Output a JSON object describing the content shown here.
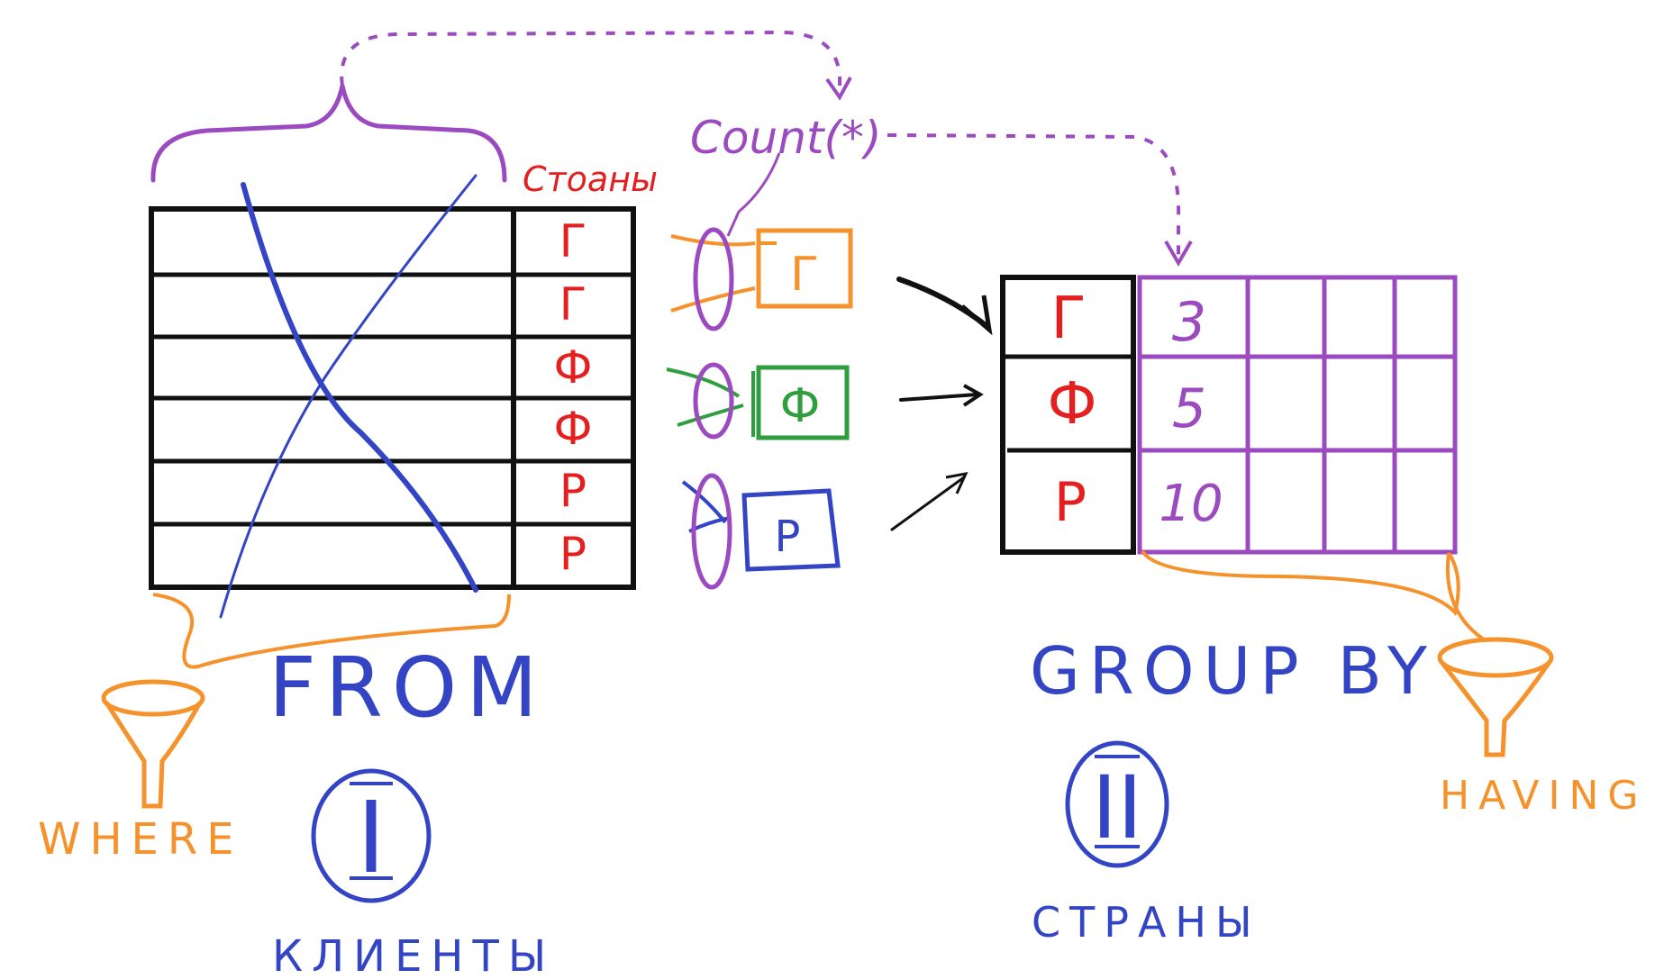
{
  "colors": {
    "black": "#111111",
    "blue": "#3345c4",
    "red": "#e31f1f",
    "purple": "#9b4bbf",
    "orange": "#f5922b",
    "green": "#2e9e3e"
  },
  "source_table": {
    "column_label": "Стоаны",
    "country_values": [
      "Г",
      "Г",
      "Ф",
      "Ф",
      "Р",
      "Р"
    ]
  },
  "aggregate": {
    "label": "Count(*)"
  },
  "group_marks": [
    {
      "letter": "Г",
      "color": "orange"
    },
    {
      "letter": "Ф",
      "color": "green"
    },
    {
      "letter": "Р",
      "color": "blue"
    }
  ],
  "grouped_table": {
    "keys": [
      "Г",
      "Ф",
      "Р"
    ],
    "counts": [
      "3",
      "5",
      "10"
    ]
  },
  "labels": {
    "from": "FROM",
    "where": "WHERE",
    "step_one": "I",
    "clients": "КЛИЕНТЫ",
    "group_by": "GROUP BY",
    "having": "HAVING",
    "step_two": "II",
    "countries": "СТРАНЫ"
  }
}
